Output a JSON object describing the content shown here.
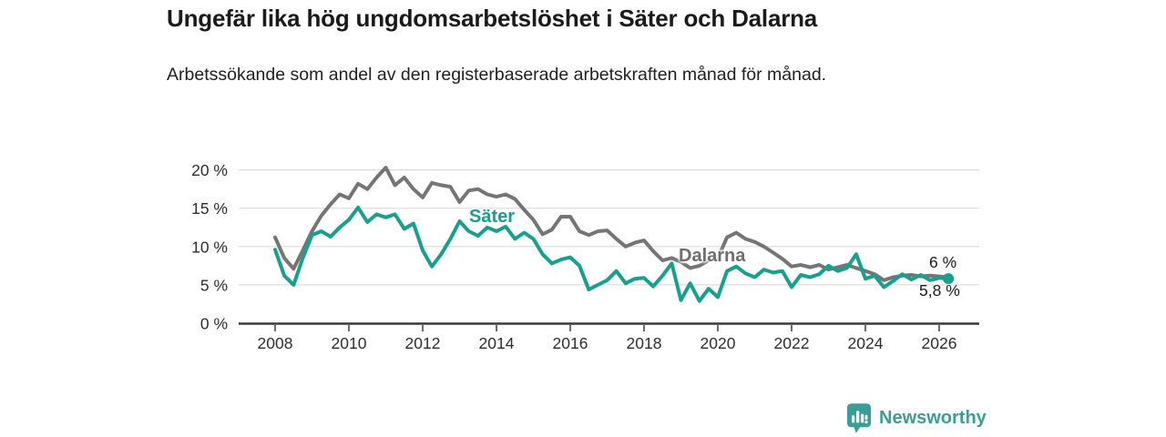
{
  "header": {
    "title": "Ungefär lika hög ungdomsarbetslöshet i Säter och Dalarna",
    "subtitle": "Arbetssökande som andel av den registerbaserade arbetskraften månad för månad."
  },
  "chart_data": {
    "type": "line",
    "title": "Ungefär lika hög ungdomsarbetslöshet i Säter och Dalarna",
    "subtitle": "Arbetssökande som andel av den registerbaserade arbetskraften månad för månad.",
    "unit": "%",
    "grid": true,
    "legend_position": "inline-labels",
    "xlim": [
      2007.0,
      2027.1
    ],
    "ylim": [
      0,
      21
    ],
    "x_start": 2008.0,
    "x_step": 0.25,
    "x_ticks": [
      {
        "value": 2008,
        "label": "2008"
      },
      {
        "value": 2010,
        "label": "2010"
      },
      {
        "value": 2012,
        "label": "2012"
      },
      {
        "value": 2014,
        "label": "2014"
      },
      {
        "value": 2016,
        "label": "2016"
      },
      {
        "value": 2018,
        "label": "2018"
      },
      {
        "value": 2020,
        "label": "2020"
      },
      {
        "value": 2022,
        "label": "2022"
      },
      {
        "value": 2024,
        "label": "2024"
      },
      {
        "value": 2026,
        "label": "2026"
      }
    ],
    "y_ticks": [
      {
        "value": 0,
        "label": "0 %"
      },
      {
        "value": 5,
        "label": "5 %"
      },
      {
        "value": 10,
        "label": "10 %"
      },
      {
        "value": 15,
        "label": "15 %"
      },
      {
        "value": 20,
        "label": "20 %"
      }
    ],
    "y_gridlines": [
      5,
      10,
      15,
      20
    ],
    "series": [
      {
        "name": "Säter",
        "color": "#17A08C",
        "label_color": "#17A08C",
        "end_label": "5,8 %",
        "end_value": 5.8,
        "values": [
          9.6,
          6.2,
          5.0,
          8.5,
          11.5,
          12.0,
          11.3,
          12.5,
          13.5,
          15.1,
          13.2,
          14.2,
          13.8,
          14.2,
          12.3,
          13.0,
          9.5,
          7.4,
          9.0,
          11.0,
          13.3,
          12.0,
          11.4,
          12.5,
          12.0,
          12.6,
          11.0,
          11.8,
          11.0,
          9.0,
          7.8,
          8.3,
          8.6,
          7.5,
          4.4,
          5.0,
          5.6,
          6.8,
          5.2,
          5.8,
          5.9,
          4.8,
          6.2,
          7.8,
          3.0,
          5.2,
          2.9,
          4.5,
          3.4,
          6.8,
          7.4,
          6.5,
          6.0,
          7.0,
          6.6,
          6.8,
          4.7,
          6.3,
          6.0,
          6.4,
          7.5,
          6.8,
          7.2,
          9.0,
          5.8,
          6.2,
          4.7,
          5.5,
          6.4,
          5.7,
          6.3,
          5.6,
          5.9,
          5.8
        ]
      },
      {
        "name": "Dalarna",
        "color": "#757575",
        "label_color": "#6E6E6E",
        "end_label": "6 %",
        "end_value": 6.0,
        "values": [
          11.2,
          8.5,
          7.1,
          9.5,
          12.0,
          14.0,
          15.5,
          16.8,
          16.3,
          18.2,
          17.5,
          19.0,
          20.3,
          18.0,
          19.0,
          17.5,
          16.4,
          18.3,
          18.0,
          17.8,
          15.8,
          17.3,
          17.5,
          16.8,
          16.5,
          16.8,
          16.2,
          14.8,
          13.5,
          11.6,
          12.2,
          13.9,
          13.9,
          12.0,
          11.5,
          12.0,
          12.1,
          11.0,
          10.0,
          10.5,
          10.8,
          9.4,
          8.2,
          8.5,
          8.0,
          7.2,
          7.5,
          8.2,
          8.5,
          11.2,
          11.8,
          11.0,
          10.6,
          10.0,
          9.2,
          8.4,
          7.4,
          7.6,
          7.3,
          7.6,
          7.0,
          7.3,
          7.6,
          7.2,
          6.8,
          6.4,
          5.6,
          6.0,
          6.2,
          6.3,
          6.1,
          6.2,
          6.1,
          6.0
        ]
      }
    ],
    "style": {
      "gridline_color": "#DCDCDC",
      "axis_color": "#3A3A3A",
      "tick_label_color": "#2E2E2E",
      "line_width": 4
    }
  },
  "footer": {
    "brand": "Newsworthy",
    "brand_color": "#3B9D96"
  }
}
